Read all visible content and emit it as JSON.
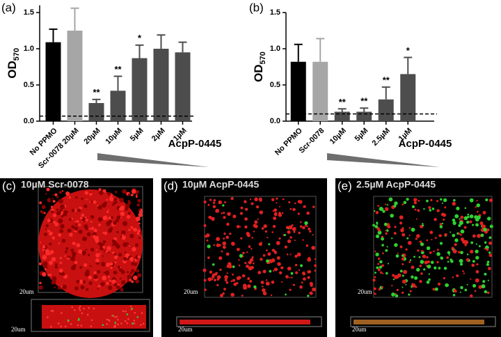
{
  "chart_data": [
    {
      "type": "bar",
      "panel_label": "(a)",
      "ylabel": "OD",
      "ylabel_subscript": "570",
      "categories": [
        "No PPMO",
        "Scr-0078 20µM",
        "20µM",
        "10µM",
        "5µM",
        "2µM",
        "1µM"
      ],
      "values": [
        1.09,
        1.25,
        0.25,
        0.42,
        0.87,
        1.0,
        0.95
      ],
      "errors": [
        0.18,
        0.31,
        0.05,
        0.2,
        0.18,
        0.19,
        0.14
      ],
      "colors": [
        "#000000",
        "#a6a6a6",
        "#4d4d4d",
        "#4d4d4d",
        "#4d4d4d",
        "#4d4d4d",
        "#4d4d4d"
      ],
      "significance": [
        null,
        null,
        "**",
        "**",
        "*",
        null,
        null
      ],
      "threshold": 0.07,
      "group_label": "AcpP-0445",
      "ylim": [
        0,
        1.6
      ],
      "yticks": [
        {
          "value": 0,
          "label": "0.0"
        },
        0.5,
        {
          "value": 1,
          "label": "1.0"
        },
        1.5
      ]
    },
    {
      "type": "bar",
      "panel_label": "(b)",
      "ylabel": "OD",
      "ylabel_subscript": "570",
      "categories": [
        "No PPMO",
        "Scr-0078",
        "10µM",
        "5µM",
        "2.5µM",
        "1µM"
      ],
      "values": [
        0.82,
        0.82,
        0.13,
        0.13,
        0.3,
        0.65
      ],
      "errors": [
        0.24,
        0.32,
        0.04,
        0.05,
        0.17,
        0.23
      ],
      "colors": [
        "#000000",
        "#a6a6a6",
        "#4d4d4d",
        "#4d4d4d",
        "#4d4d4d",
        "#4d4d4d"
      ],
      "significance": [
        null,
        null,
        "**",
        "**",
        "**",
        "*"
      ],
      "threshold": 0.1,
      "group_label": "AcpP-0445",
      "ylim": [
        0,
        1.5
      ],
      "yticks": [
        {
          "value": 0,
          "label": "0.0"
        },
        0.5,
        {
          "value": 1,
          "label": "1.0"
        },
        1.5
      ]
    }
  ],
  "image_panels": [
    {
      "label": "(c)",
      "title": "10µM Scr-0078",
      "scale_labels": [
        "20um",
        "20um"
      ]
    },
    {
      "label": "(d)",
      "title": "10µM AcpP-0445",
      "scale_labels": [
        "20um",
        "20um"
      ]
    },
    {
      "label": "(e)",
      "title": "2.5µM AcpP-0445",
      "scale_labels": [
        "20um",
        "20um"
      ]
    }
  ]
}
